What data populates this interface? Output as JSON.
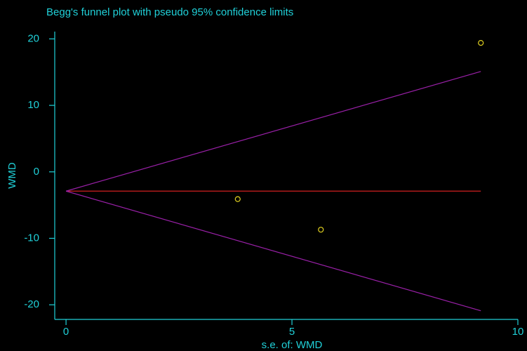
{
  "chart_data": {
    "type": "scatter",
    "title": "Begg's funnel plot with pseudo 95% confidence limits",
    "x_label": "s.e. of: WMD",
    "y_label": "WMD",
    "x": [
      9.18,
      3.8,
      5.64
    ],
    "y": [
      19.4,
      -4.1,
      -8.7
    ],
    "color": "#e0d020",
    "lines": [
      {
        "color": "#d02020",
        "x": [
          0,
          9.18
        ],
        "y": [
          -2.9,
          -2.9
        ]
      },
      {
        "color": "#9a20a8",
        "x": [
          0,
          9.18
        ],
        "y": [
          -2.9,
          15.1
        ]
      },
      {
        "color": "#9a20a8",
        "x": [
          0,
          9.18
        ],
        "y": [
          -2.9,
          -20.9
        ]
      }
    ],
    "xlim": [
      -0.25,
      10
    ],
    "ylim": [
      -22.2,
      21.1
    ],
    "xticks": [
      0,
      5,
      10
    ],
    "yticks": [
      -20,
      -10,
      0,
      10,
      20
    ],
    "axis_color": "#20d0d8"
  }
}
